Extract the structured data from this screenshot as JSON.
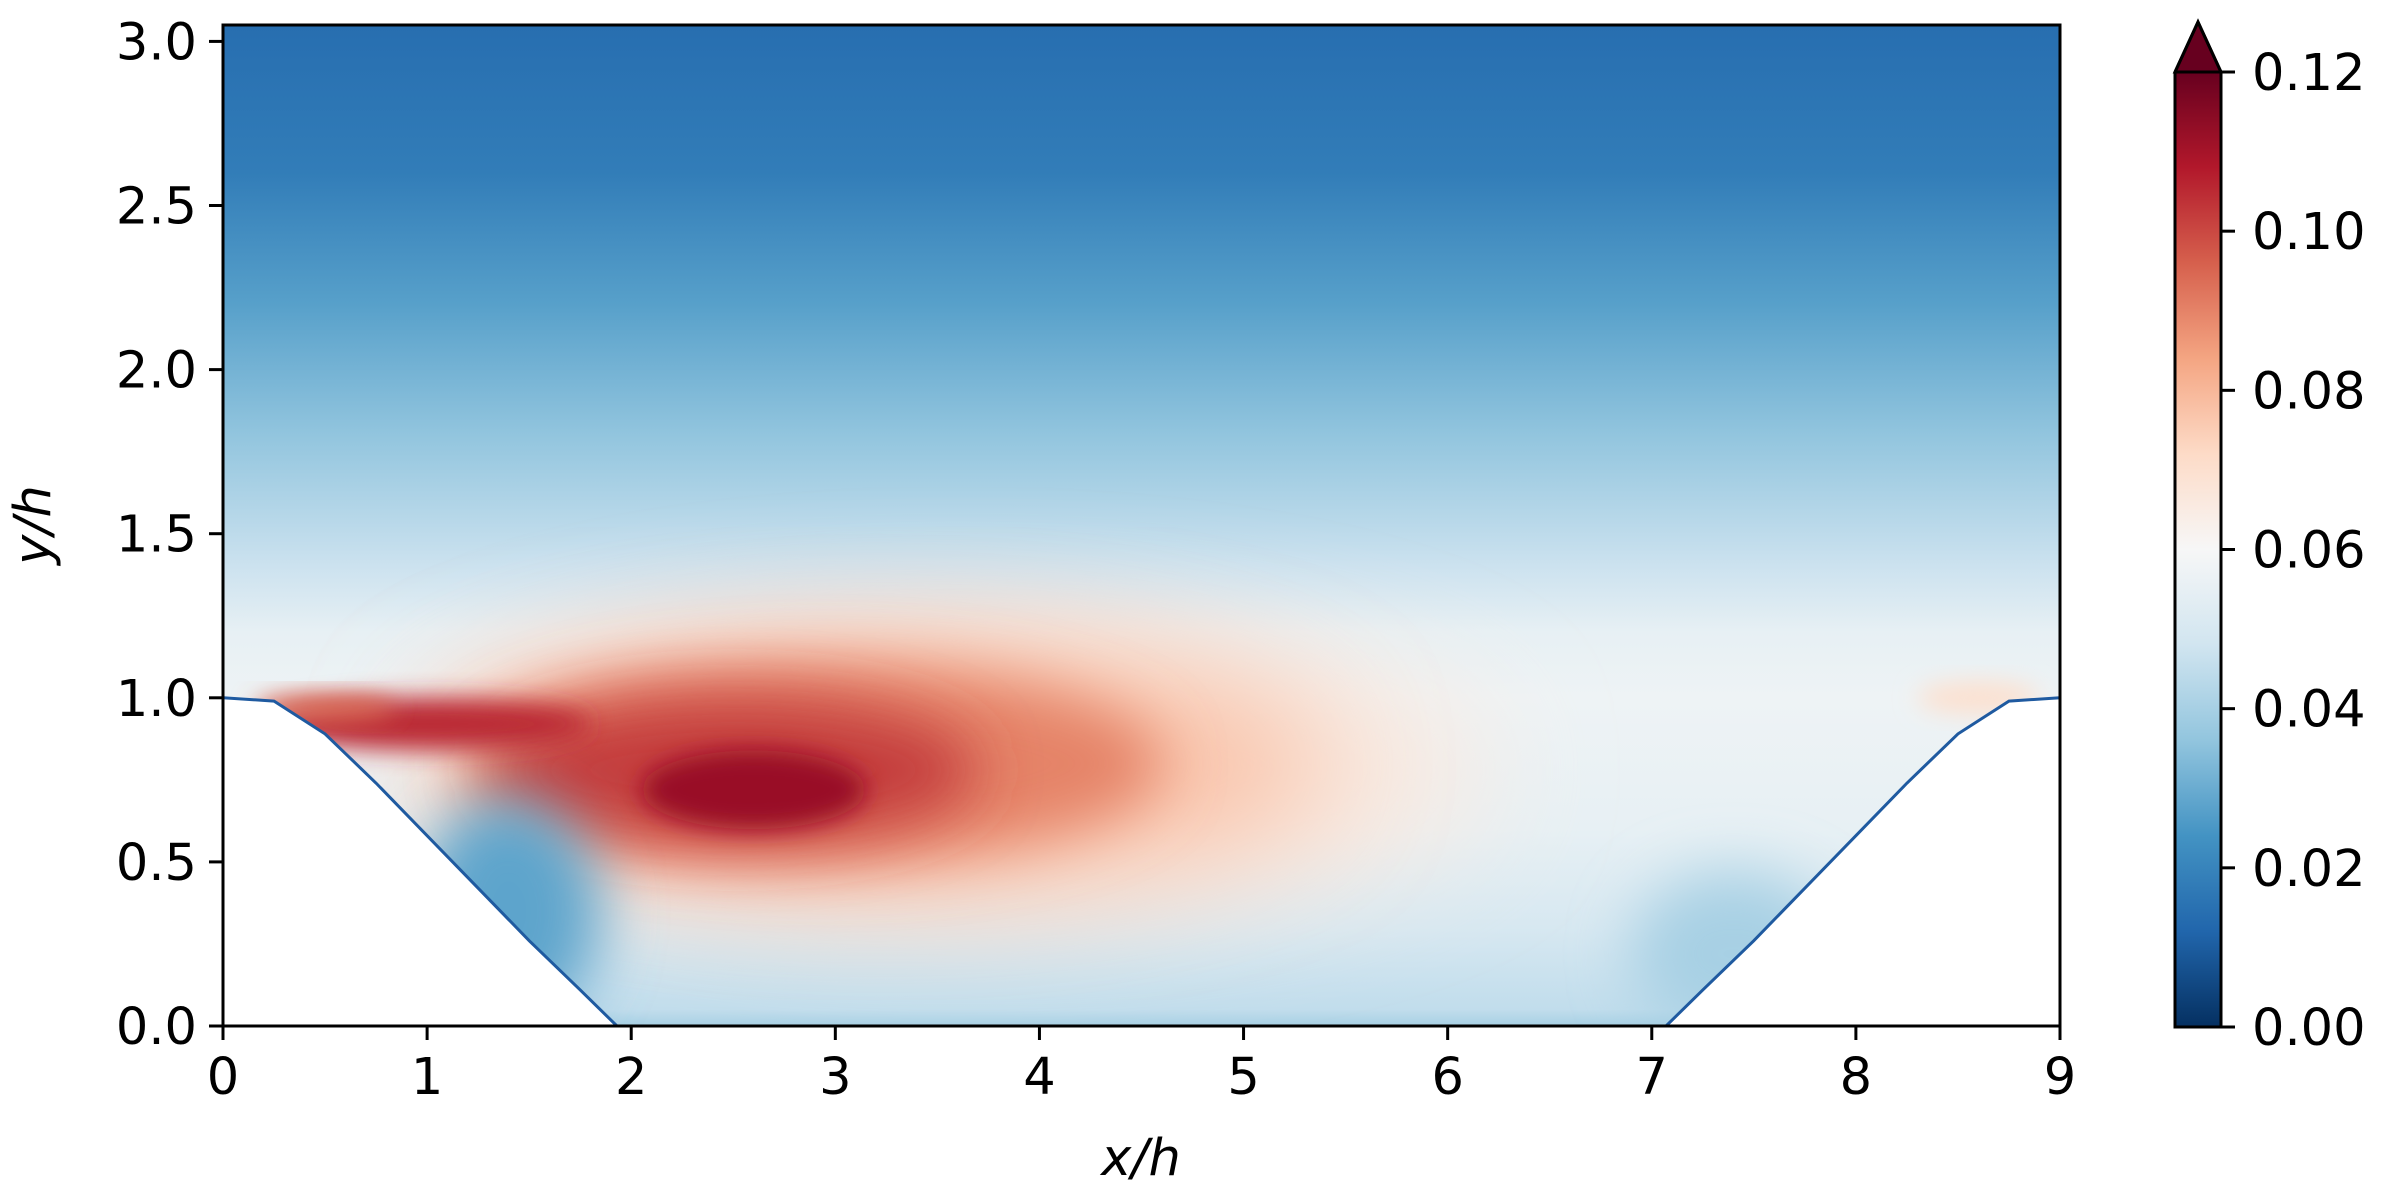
{
  "chart_data": {
    "type": "heatmap",
    "title": "",
    "xlabel": "x/h",
    "ylabel": "y/h",
    "xlim": [
      0,
      9
    ],
    "ylim": [
      0,
      3.05
    ],
    "x_ticks": [
      "0",
      "1",
      "2",
      "3",
      "4",
      "5",
      "6",
      "7",
      "8",
      "9"
    ],
    "y_ticks": [
      "0.0",
      "0.5",
      "1.0",
      "1.5",
      "2.0",
      "2.5",
      "3.0"
    ],
    "colorbar": {
      "colormap": "RdBu_r",
      "range": [
        0,
        0.12
      ],
      "extend": "max",
      "ticks": [
        "0.00",
        "0.02",
        "0.04",
        "0.06",
        "0.08",
        "0.10",
        "0.12"
      ],
      "colors": [
        "#053061",
        "#2166ac",
        "#4393c3",
        "#92c5de",
        "#d1e5f0",
        "#f7f7f7",
        "#fddbc7",
        "#f4a582",
        "#d6604d",
        "#b2182b",
        "#67001f"
      ]
    },
    "wall_profile": {
      "description_hill": "periodic hill geometry, crest height 1.0 at x=0 and x=9",
      "x": [
        0,
        0.25,
        0.5,
        0.75,
        1.0,
        1.25,
        1.5,
        1.75,
        1.93,
        7.07,
        7.25,
        7.5,
        7.75,
        8.0,
        8.25,
        8.5,
        8.75,
        9.0
      ],
      "y": [
        1.0,
        0.99,
        0.89,
        0.74,
        0.58,
        0.42,
        0.26,
        0.11,
        0.0,
        0.0,
        0.11,
        0.26,
        0.42,
        0.58,
        0.74,
        0.89,
        0.99,
        1.0
      ]
    },
    "field_features": {
      "peak_value": 0.115,
      "peak_location": [
        2.7,
        0.72
      ],
      "free_stream_value_top": 0.015,
      "near_wall_value": 0.02
    }
  }
}
